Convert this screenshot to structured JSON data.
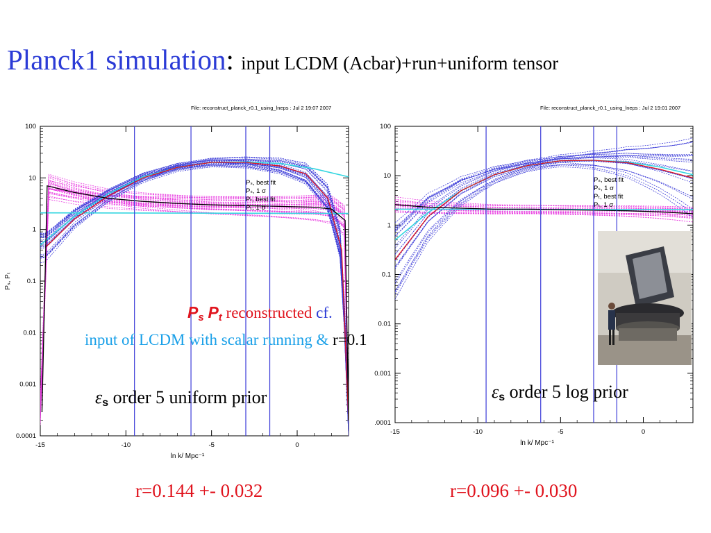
{
  "title": {
    "main": "Planck1",
    "simulation": "simulation",
    "colon": ":",
    "subtitle": "input LCDM (Acbar)+run+uniform tensor"
  },
  "colors": {
    "title_blue": "#2b3bd6",
    "result_red": "#e0141e",
    "note_cyan": "#1aa0e8",
    "curve_magenta": "#e83be0",
    "curve_blue": "#3a3ad8",
    "curve_cyan": "#35d6e0",
    "vline_blue": "#3a3ad8"
  },
  "chart_data": [
    {
      "type": "line",
      "file_label": "File: reconstruct_planck_r0.1_using_lneps : Jul  2 19:07 2007",
      "xlabel": "ln k/ Mpc⁻¹",
      "ylabel": "Pₛ, Pₜ",
      "xlim": [
        -15,
        3
      ],
      "ylim": [
        0.0001,
        100
      ],
      "yscale": "log",
      "xticks": [
        -15,
        -10,
        -5,
        0
      ],
      "xtick_labels": [
        "-15",
        "-10",
        "-5",
        "0"
      ],
      "yticks": [
        0.0001,
        0.001,
        0.01,
        0.1,
        1,
        10,
        100
      ],
      "ytick_labels": [
        "0.0001",
        "0.001",
        "0.01",
        "0.1",
        "1",
        "10",
        "100"
      ],
      "vlines": [
        -9.5,
        -6.2,
        -3,
        -1.6
      ],
      "legend": [
        "Pₛ, best fit",
        "Pₛ, 1 σ",
        "Pₜ, best fit",
        "Pₜ, 1 σ"
      ],
      "legend_colors": [
        "#e0141e",
        "#3a3ad8",
        "#000000",
        "#e83be0"
      ],
      "legend_placement": "right-middle",
      "series": [
        {
          "name": "Pₛ, best fit",
          "color": "#e0141e",
          "x": [
            -14.7,
            -13,
            -11,
            -9,
            -7,
            -5,
            -3,
            -1,
            0.5,
            1.8,
            2.6,
            3
          ],
          "y": [
            0.45,
            1.6,
            4.5,
            10,
            16,
            20,
            20,
            17,
            12,
            4,
            0.4,
            0.0002
          ]
        },
        {
          "name": "Pₜ, best fit",
          "color": "#000000",
          "x": [
            -14.9,
            -14.6,
            -13,
            -11,
            -9,
            -7,
            -5,
            -3,
            -1,
            1,
            2,
            2.8,
            3
          ],
          "y": [
            0.0003,
            7,
            5.2,
            4,
            3.5,
            3.2,
            3,
            2.9,
            2.8,
            2.7,
            2.5,
            1.5,
            0.0002
          ]
        },
        {
          "name": "input Pₛ",
          "color": "#35d6e0",
          "x": [
            -15,
            -13,
            -11,
            -9,
            -7,
            -5,
            -3,
            -1,
            1,
            3
          ],
          "y": [
            0.5,
            1.8,
            5,
            10.5,
            16,
            20,
            20.5,
            19,
            15,
            10.5
          ]
        },
        {
          "name": "input Pₜ",
          "color": "#35d6e0",
          "x": [
            -15,
            3
          ],
          "y": [
            2.1,
            2.05
          ]
        }
      ]
    },
    {
      "type": "line",
      "file_label": "File: reconstruct_planck_r0.1_using_lneps : Jul  2 19:01 2007",
      "xlabel": "ln k/ Mpc⁻¹",
      "ylabel": "",
      "xlim": [
        -15,
        3
      ],
      "ylim": [
        0.0001,
        100
      ],
      "yscale": "log",
      "xticks": [
        -15,
        -10,
        -5,
        0
      ],
      "xtick_labels": [
        "-15",
        "-10",
        "-5",
        "0"
      ],
      "yticks": [
        0.0001,
        0.001,
        0.01,
        0.1,
        1,
        10,
        100
      ],
      "ytick_labels": [
        ".0001",
        "0.001",
        "0.01",
        "0.1",
        "1",
        "10",
        "100"
      ],
      "vlines": [
        -9.5,
        -6.2,
        -3,
        -1.6
      ],
      "legend": [
        "Pₛ, best fit",
        "Pₛ, 1 σ",
        "Pₜ, best fit",
        "Pₜ, 1 σ"
      ],
      "legend_colors": [
        "#e0141e",
        "#3a3ad8",
        "#000000",
        "#e83be0"
      ],
      "legend_placement": "right-middle",
      "series": [
        {
          "name": "Pₛ, best fit",
          "color": "#e0141e",
          "x": [
            -15,
            -13,
            -11,
            -9,
            -7,
            -5,
            -3,
            -1,
            1,
            3
          ],
          "y": [
            0.2,
            1.5,
            5,
            10.5,
            16,
            20,
            20.5,
            18.5,
            13.5,
            9
          ]
        },
        {
          "name": "Pₜ, best fit",
          "color": "#000000",
          "x": [
            -15,
            -13,
            -11,
            -9,
            -7,
            -5,
            -3,
            -1,
            1,
            3
          ],
          "y": [
            2.6,
            2.3,
            2.2,
            2.1,
            2.1,
            2.05,
            2.0,
            1.95,
            1.85,
            1.7
          ]
        },
        {
          "name": "input Pₛ",
          "color": "#35d6e0",
          "x": [
            -15,
            -13,
            -11,
            -9,
            -7,
            -5,
            -3,
            -1,
            1,
            3
          ],
          "y": [
            0.5,
            1.8,
            5,
            10.5,
            16,
            20,
            20.5,
            19,
            15,
            10.5
          ]
        },
        {
          "name": "input Pₜ",
          "color": "#35d6e0",
          "x": [
            -15,
            3
          ],
          "y": [
            2.1,
            2.05
          ]
        }
      ]
    }
  ],
  "overlay": {
    "ps": "P",
    "ps_sub": "s",
    "pt": "P",
    "pt_sub": "t",
    "reconstructed": " reconstructed ",
    "cf": "cf.",
    "line2": "input of LCDM with scalar running & ",
    "line2_r": "r=0.1"
  },
  "annotations": {
    "eps_symbol": "ε",
    "eps_sub": "s",
    "left_prior": " order 5 uniform prior",
    "right_prior": " order 5 log prior"
  },
  "results": {
    "left": "r=0.144 +- 0.032",
    "right": "r=0.096 +- 0.030"
  },
  "photo": {
    "description_icon": "planck-satellite-photo"
  }
}
